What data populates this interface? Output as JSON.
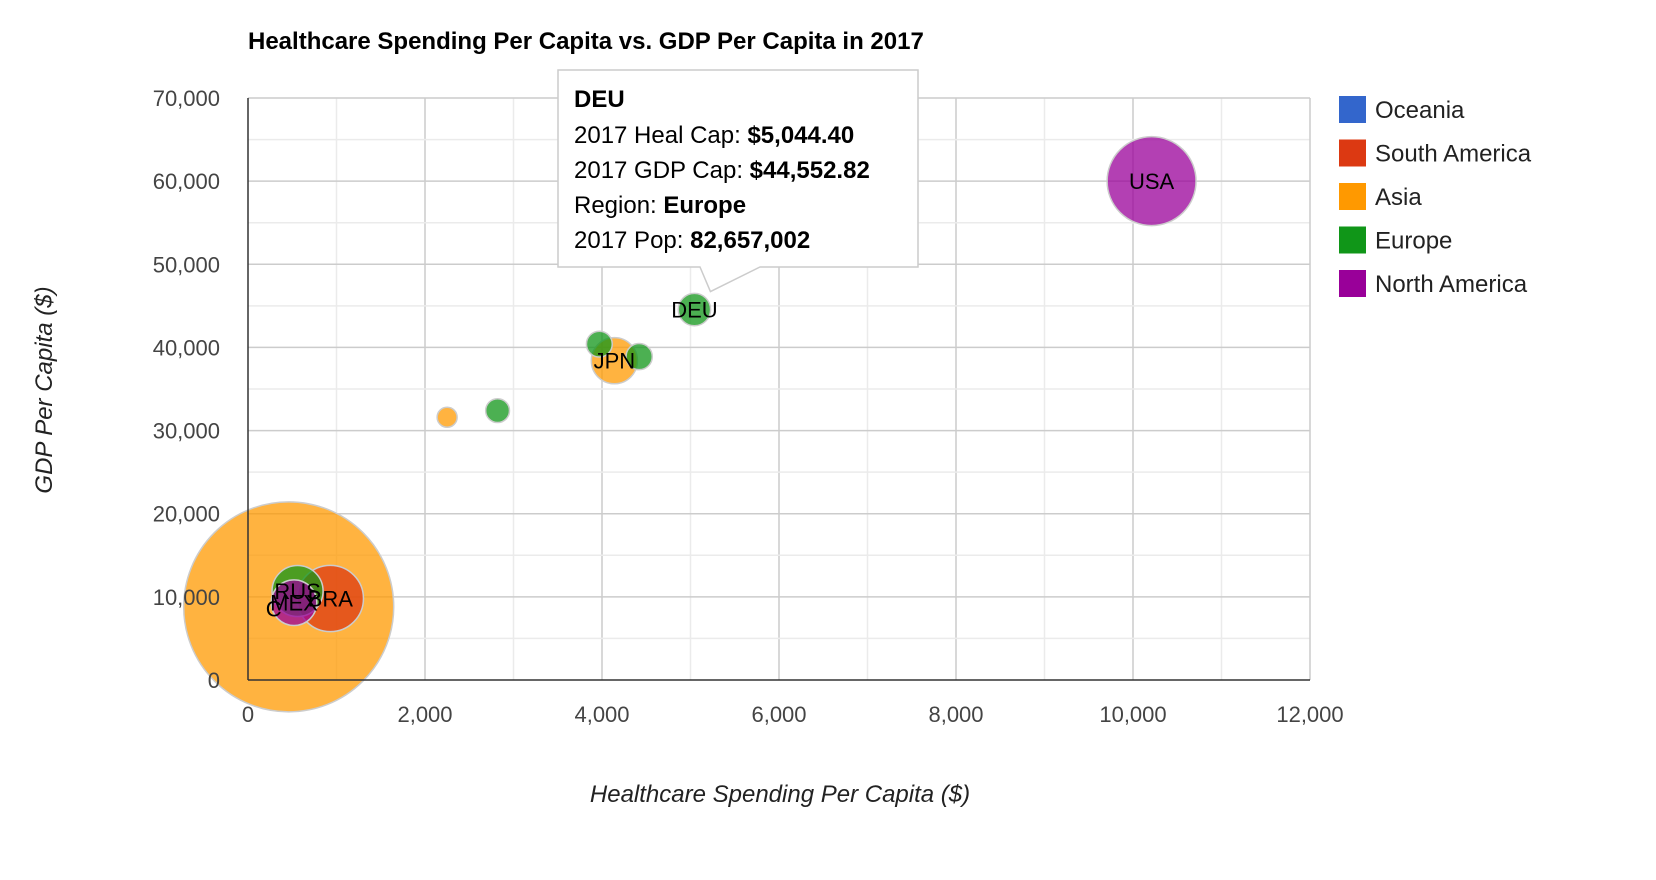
{
  "chart_data": {
    "type": "scatter",
    "subtype": "bubble",
    "title": "Healthcare Spending Per Capita vs. GDP Per Capita in 2017",
    "xlabel": "Healthcare Spending Per Capita ($)",
    "ylabel": "GDP Per Capita ($)",
    "xlim": [
      0,
      12000
    ],
    "ylim": [
      0,
      70000
    ],
    "x_ticks": [
      0,
      2000,
      4000,
      6000,
      8000,
      10000,
      12000
    ],
    "x_tick_labels": [
      "0",
      "2,000",
      "4,000",
      "6,000",
      "8,000",
      "10,000",
      "12,000"
    ],
    "y_ticks": [
      0,
      10000,
      20000,
      30000,
      40000,
      50000,
      60000,
      70000
    ],
    "y_tick_labels": [
      "0",
      "10,000",
      "20,000",
      "30,000",
      "40,000",
      "50,000",
      "60,000",
      "70,000"
    ],
    "grid": true,
    "legend_position": "right",
    "legend": [
      {
        "name": "Oceania",
        "color": "#3366cc"
      },
      {
        "name": "South America",
        "color": "#dc3912"
      },
      {
        "name": "Asia",
        "color": "#ff9900"
      },
      {
        "name": "Europe",
        "color": "#109618"
      },
      {
        "name": "North America",
        "color": "#990099"
      }
    ],
    "points": [
      {
        "label": "",
        "x": 460,
        "y": 8800,
        "region": "Asia",
        "size": 1380000000
      },
      {
        "label": "RUS",
        "x": 560,
        "y": 10700,
        "region": "Europe",
        "size": 145000000
      },
      {
        "label": "BRA",
        "x": 930,
        "y": 9800,
        "region": "South America",
        "size": 209000000
      },
      {
        "label": "MEX",
        "x": 520,
        "y": 9300,
        "region": "North America",
        "size": 125000000
      },
      {
        "label": "",
        "x": 2250,
        "y": 31600,
        "region": "Asia",
        "size": 51000000
      },
      {
        "label": "",
        "x": 2820,
        "y": 32400,
        "region": "Europe",
        "size": 60000000
      },
      {
        "label": "",
        "x": 3970,
        "y": 40400,
        "region": "Europe",
        "size": 65000000
      },
      {
        "label": "JPN",
        "x": 4140,
        "y": 38400,
        "region": "Asia",
        "size": 127000000
      },
      {
        "label": "",
        "x": 4420,
        "y": 38900,
        "region": "Europe",
        "size": 66000000
      },
      {
        "label": "DEU",
        "x": 5044.4,
        "y": 44552.82,
        "region": "Europe",
        "size": 82657002
      },
      {
        "label": "USA",
        "x": 10210,
        "y": 60000,
        "region": "North America",
        "size": 325000000
      }
    ],
    "extra_labels": [
      {
        "text": "C",
        "x": 290,
        "y": 8600
      }
    ]
  },
  "tooltip": {
    "title": "DEU",
    "lines": [
      {
        "label": "2017 Heal Cap: ",
        "value": "$5,044.40"
      },
      {
        "label": "2017 GDP Cap: ",
        "value": "$44,552.82"
      },
      {
        "label": "Region: ",
        "value": "Europe"
      },
      {
        "label": "2017 Pop: ",
        "value": "82,657,002"
      }
    ],
    "anchor": {
      "x": 5044.4,
      "y": 44552.82
    }
  }
}
